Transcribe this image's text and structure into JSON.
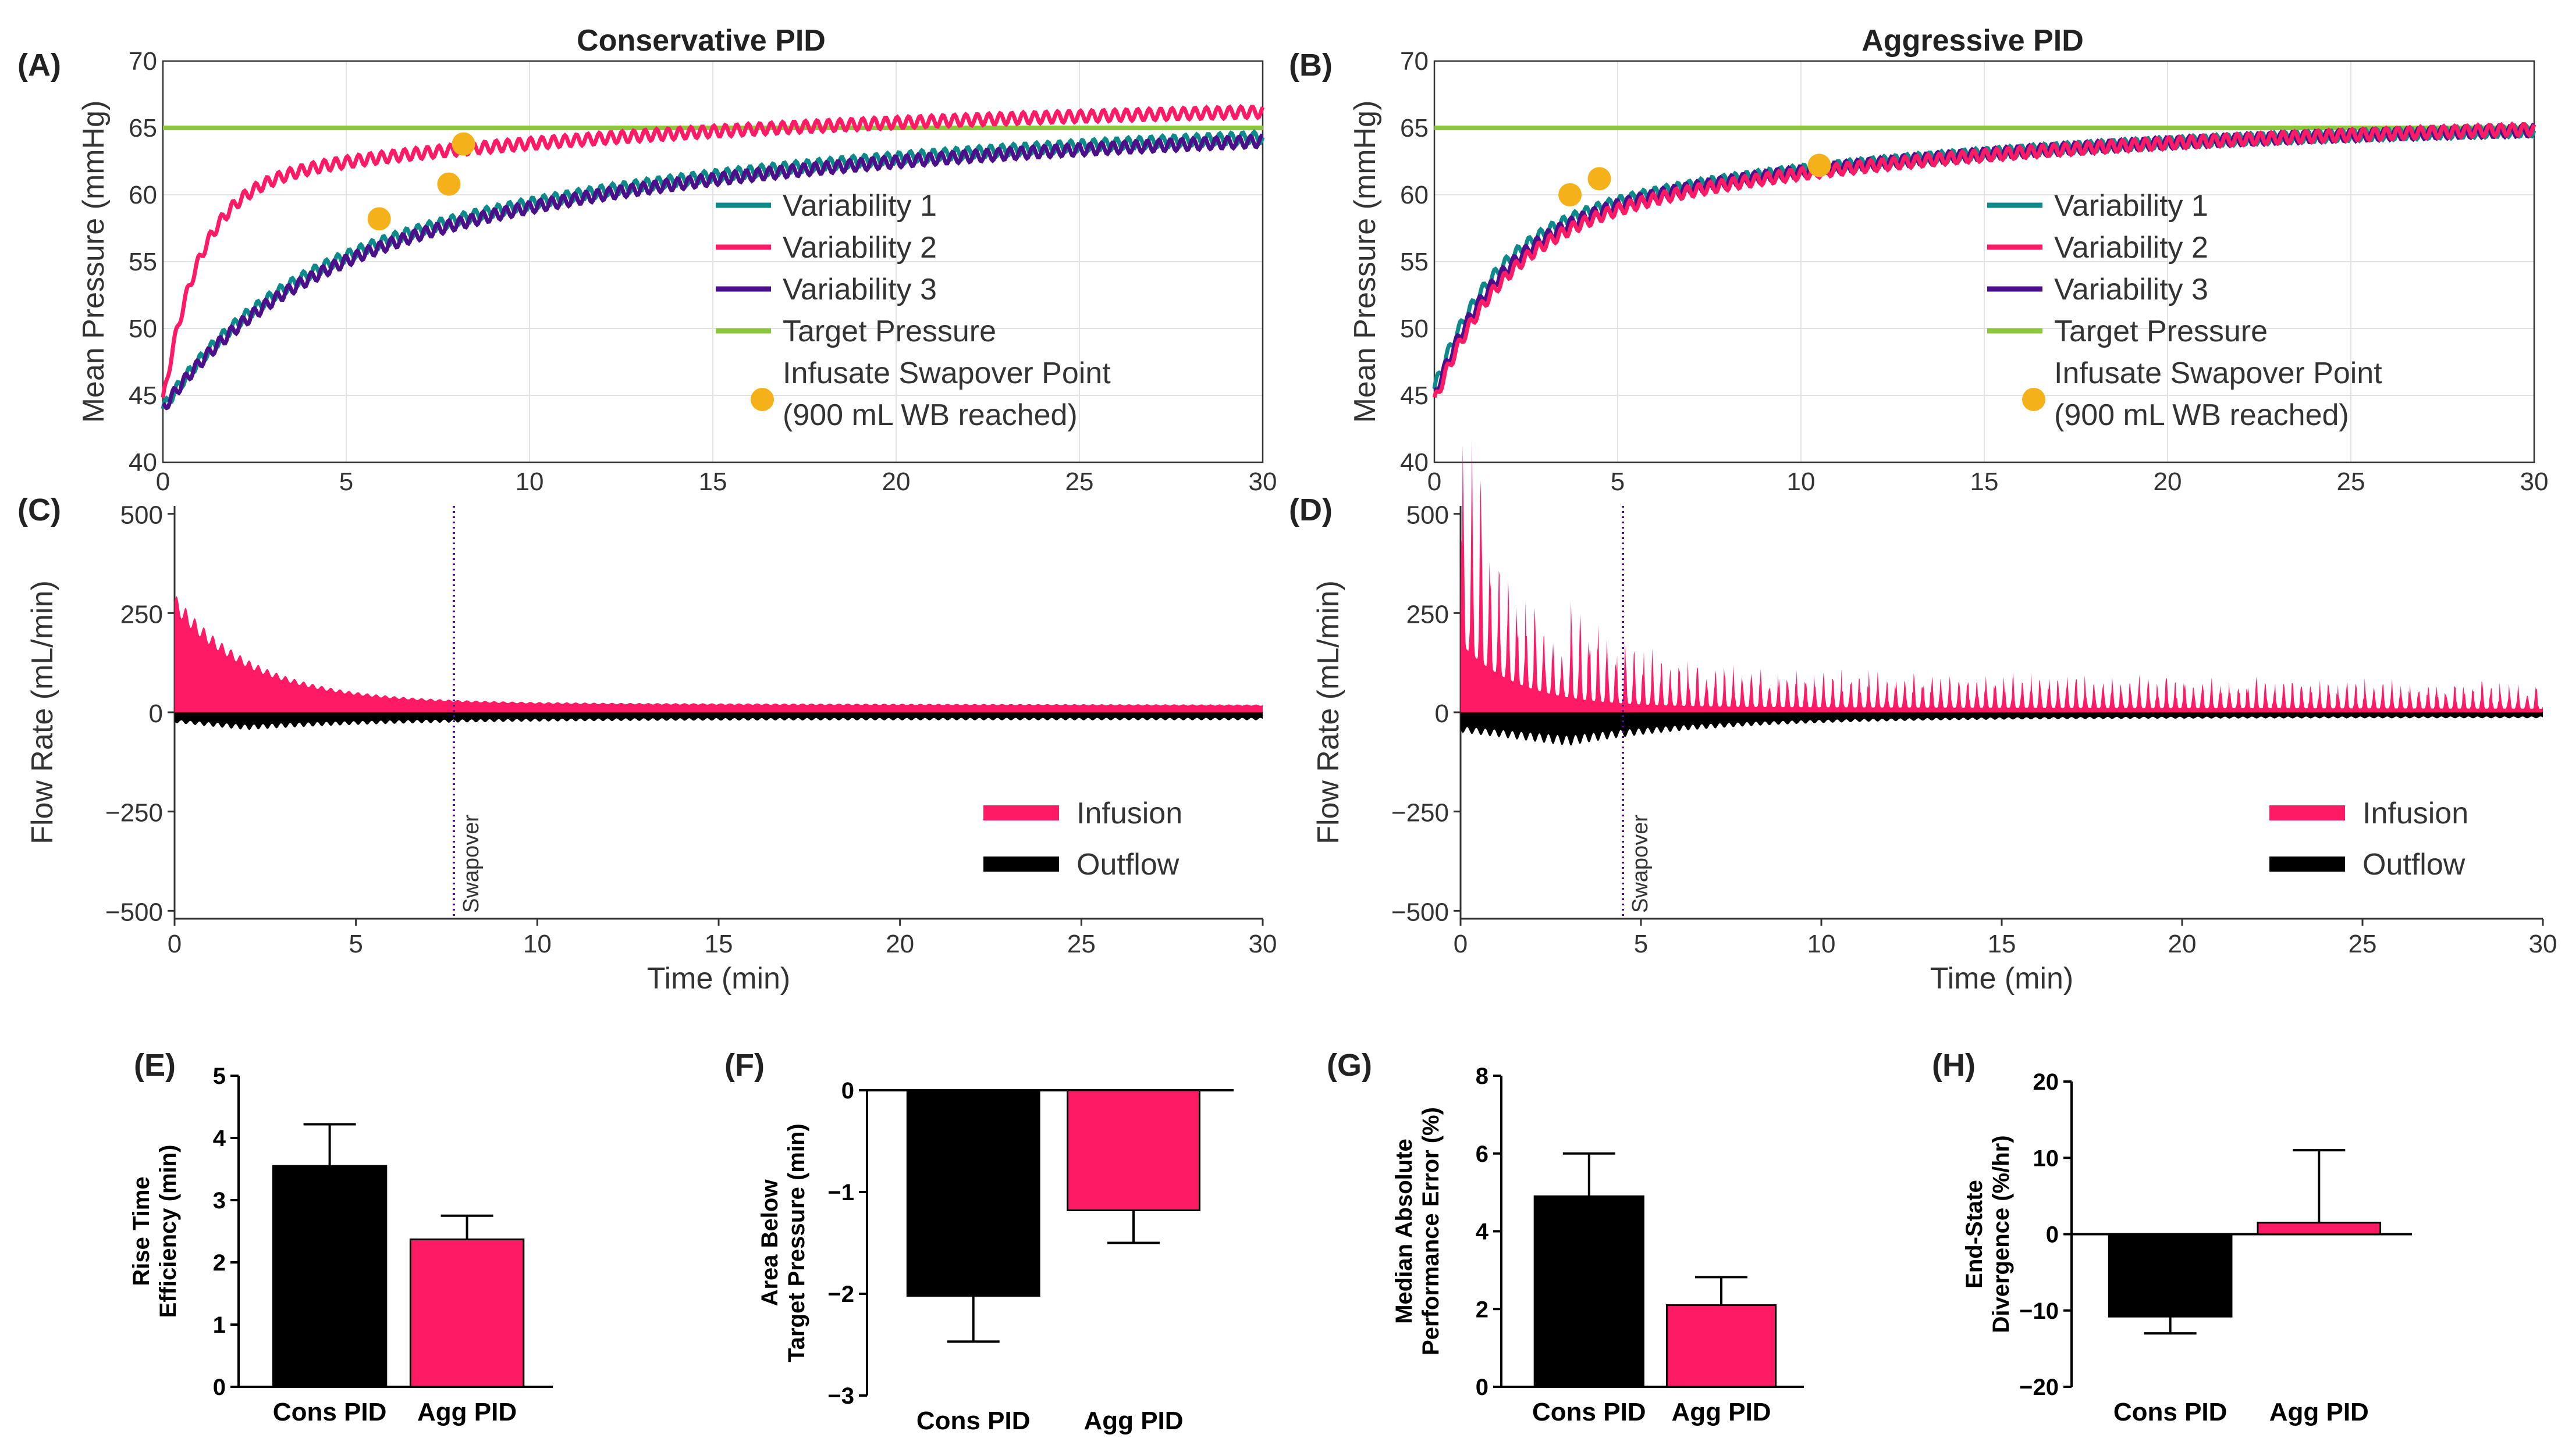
{
  "colors": {
    "variability1": "#0f8a8a",
    "variability2": "#ff1a66",
    "variability3": "#4b0f8a",
    "target": "#8cc63f",
    "swapover_point": "#f5b119",
    "infusion": "#ff1a66",
    "outflow": "#000000",
    "cons_bar": "#000000",
    "agg_bar": "#ff1a66"
  },
  "chart_data": [
    {
      "id": "A",
      "type": "line",
      "letter": "(A)",
      "title": "Conservative PID",
      "xlabel": "",
      "ylabel": "Mean Pressure (mmHg)",
      "xlim": [
        0,
        30
      ],
      "ylim": [
        40,
        70
      ],
      "xticks": [
        0,
        5,
        10,
        15,
        20,
        25,
        30
      ],
      "yticks": [
        40,
        45,
        50,
        55,
        60,
        65,
        70
      ],
      "grid": true,
      "target": 65,
      "series": [
        {
          "name": "Variability 1",
          "start": 44.0,
          "final": 64.3,
          "tau": 2.8,
          "slow": 0.55,
          "tau2": 14
        },
        {
          "name": "Variability 2",
          "start": 44.5,
          "final": 66.2,
          "tau": 1.0,
          "slow": 0.25,
          "tau2": 15
        },
        {
          "name": "Variability 3",
          "start": 44.0,
          "final": 64.0,
          "tau": 3.0,
          "slow": 0.55,
          "tau2": 14
        }
      ],
      "swapover_points": [
        [
          5.9,
          58.2
        ],
        [
          7.8,
          60.8
        ],
        [
          8.2,
          63.8
        ]
      ],
      "legend": [
        "Variability 1",
        "Variability 2",
        "Variability 3",
        "Target Pressure",
        "Infusate Swapover Point",
        "(900 mL WB reached)"
      ]
    },
    {
      "id": "B",
      "type": "line",
      "letter": "(B)",
      "title": "Aggressive PID",
      "xlabel": "",
      "ylabel": "Mean Pressure (mmHg)",
      "xlim": [
        0,
        30
      ],
      "ylim": [
        40,
        70
      ],
      "xticks": [
        0,
        5,
        10,
        15,
        20,
        25,
        30
      ],
      "yticks": [
        40,
        45,
        50,
        55,
        60,
        65,
        70
      ],
      "grid": true,
      "target": 65,
      "series": [
        {
          "name": "Variability 1",
          "start": 45.5,
          "final": 64.8,
          "tau": 1.6,
          "slow": 0.4,
          "tau2": 12
        },
        {
          "name": "Variability 2",
          "start": 44.5,
          "final": 64.9,
          "tau": 1.8,
          "slow": 0.4,
          "tau2": 13
        },
        {
          "name": "Variability 3",
          "start": 45.0,
          "final": 64.8,
          "tau": 1.7,
          "slow": 0.4,
          "tau2": 12
        }
      ],
      "swapover_points": [
        [
          3.7,
          60.0
        ],
        [
          4.5,
          61.2
        ],
        [
          10.5,
          62.2
        ]
      ],
      "legend": [
        "Variability 1",
        "Variability 2",
        "Variability 3",
        "Target Pressure",
        "Infusate Swapover Point",
        "(900 mL WB reached)"
      ]
    },
    {
      "id": "C",
      "type": "area",
      "letter": "(C)",
      "xlabel": "Time (min)",
      "ylabel": "Flow Rate (mL/min)",
      "xlim": [
        0,
        30
      ],
      "ylim": [
        -520,
        520
      ],
      "xticks": [
        0,
        5,
        10,
        15,
        20,
        25,
        30
      ],
      "yticks": [
        -500,
        -250,
        0,
        250,
        500
      ],
      "ytick_labels": [
        "−500",
        "−250",
        "0",
        "250",
        "500"
      ],
      "swapover_x": 7.7,
      "swapover_label": "Swapover",
      "infusion": {
        "peak": 300,
        "tau": 2.2,
        "floor": 25,
        "floor_decay": 0.012,
        "spikes": false
      },
      "outflow": {
        "depth": -45,
        "min_at": 2,
        "end": -20
      },
      "legend": [
        "Infusion",
        "Outflow"
      ]
    },
    {
      "id": "D",
      "type": "area",
      "letter": "(D)",
      "xlabel": "Time (min)",
      "ylabel": "Flow Rate (mL/min)",
      "xlim": [
        0,
        30
      ],
      "ylim": [
        -520,
        520
      ],
      "xticks": [
        0,
        5,
        10,
        15,
        20,
        25,
        30
      ],
      "yticks": [
        -500,
        -250,
        0,
        250,
        500
      ],
      "ytick_labels": [
        "−500",
        "−250",
        "0",
        "250",
        "500"
      ],
      "swapover_x": 4.5,
      "swapover_label": "Swapover",
      "infusion": {
        "peak": 500,
        "tau": 1.6,
        "floor": 40,
        "floor_decay": 0.02,
        "spikes": true
      },
      "outflow": {
        "depth": -85,
        "min_at": 3,
        "end": -15
      },
      "legend": [
        "Infusion",
        "Outflow"
      ]
    },
    {
      "id": "E",
      "type": "bar",
      "letter": "(E)",
      "ylabel_lines": [
        "Rise Time",
        "Efficiency (min)"
      ],
      "categories": [
        "Cons PID",
        "Agg PID"
      ],
      "values": [
        3.55,
        2.37
      ],
      "errors": [
        0.67,
        0.38
      ],
      "ylim": [
        0,
        5
      ],
      "yticks": [
        0,
        1,
        2,
        3,
        4,
        5
      ],
      "ytick_labels": [
        "0",
        "1",
        "2",
        "3",
        "4",
        "5"
      ]
    },
    {
      "id": "F",
      "type": "bar",
      "letter": "(F)",
      "ylabel_lines": [
        "Area Below",
        "Target Pressure (min)"
      ],
      "categories": [
        "Cons PID",
        "Agg PID"
      ],
      "values": [
        -2.02,
        -1.18
      ],
      "errors": [
        0.45,
        0.32
      ],
      "ylim": [
        -3,
        0
      ],
      "yticks": [
        -3,
        -2,
        -1,
        0
      ],
      "ytick_labels": [
        "−3",
        "−2",
        "−1",
        "0"
      ]
    },
    {
      "id": "G",
      "type": "bar",
      "letter": "(G)",
      "ylabel_lines": [
        "Median Absolute",
        "Performance Error (%)"
      ],
      "categories": [
        "Cons PID",
        "Agg PID"
      ],
      "values": [
        4.9,
        2.1
      ],
      "errors": [
        1.1,
        0.72
      ],
      "ylim": [
        0,
        8
      ],
      "yticks": [
        0,
        2,
        4,
        6,
        8
      ],
      "ytick_labels": [
        "0",
        "2",
        "4",
        "6",
        "8"
      ]
    },
    {
      "id": "H",
      "type": "bar",
      "letter": "(H)",
      "ylabel_lines": [
        "End-State",
        "Divergence (%/hr)"
      ],
      "categories": [
        "Cons PID",
        "Agg PID"
      ],
      "values": [
        -10.8,
        1.5
      ],
      "errors": [
        2.2,
        9.5
      ],
      "ylim": [
        -20,
        20
      ],
      "yticks": [
        -20,
        -10,
        0,
        10,
        20
      ],
      "ytick_labels": [
        "−20",
        "−10",
        "0",
        "10",
        "20"
      ]
    }
  ]
}
